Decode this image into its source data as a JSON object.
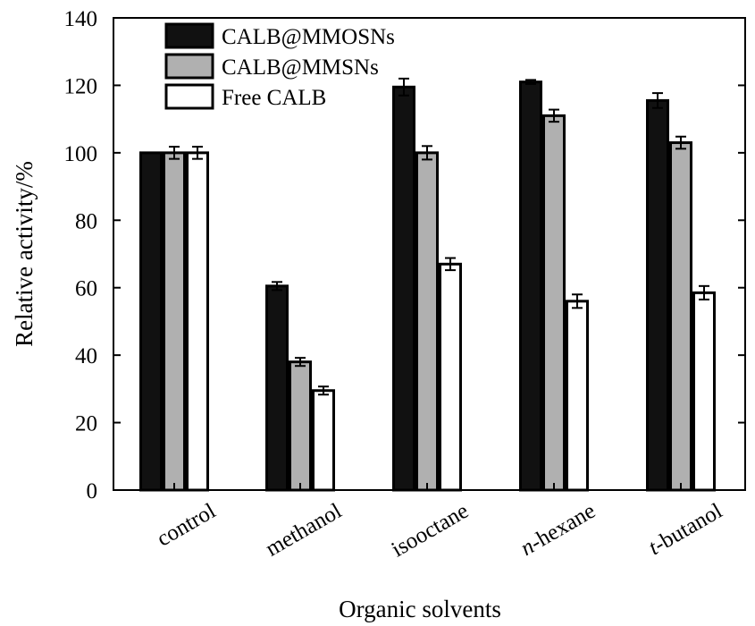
{
  "chart_data": {
    "type": "bar",
    "title": "",
    "xlabel": "Organic solvents",
    "ylabel": "Relative activity/%",
    "ylim": [
      0,
      140
    ],
    "yticks": [
      0,
      20,
      40,
      60,
      80,
      100,
      120,
      140
    ],
    "categories": [
      {
        "prefix": "",
        "main": "control"
      },
      {
        "prefix": "",
        "main": "methanol"
      },
      {
        "prefix": "",
        "main": "isooctane"
      },
      {
        "prefix": "n",
        "main": "-hexane"
      },
      {
        "prefix": "t",
        "main": "-butanol"
      }
    ],
    "series": [
      {
        "name": "CALB@MMOSNs",
        "color": "#111111",
        "values": [
          100,
          60.5,
          119.5,
          121,
          115.5
        ],
        "errors": [
          0,
          1.2,
          2.5,
          0.6,
          2.2
        ]
      },
      {
        "name": "CALB@MMSNs",
        "color": "#b0b0b0",
        "values": [
          100,
          38,
          100,
          111,
          103
        ],
        "errors": [
          1.8,
          1.2,
          2.0,
          1.8,
          1.8
        ]
      },
      {
        "name": "Free CALB",
        "color": "#ffffff",
        "values": [
          100,
          29.5,
          67,
          56,
          58.5
        ],
        "errors": [
          1.8,
          1.2,
          1.8,
          2.0,
          2.0
        ]
      }
    ],
    "grid": false,
    "legend_position": "top-left"
  }
}
